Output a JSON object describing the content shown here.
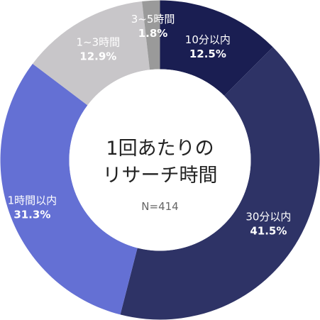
{
  "chart_data": {
    "type": "pie",
    "title": "1回あたりのリサーチ時間",
    "title_lines": [
      "1回あたりの",
      "リサーチ時間"
    ],
    "note": "N=414",
    "slices": [
      {
        "label": "10分以内",
        "value": 12.5,
        "value_text": "12.5%",
        "color": "#1a1e52"
      },
      {
        "label": "30分以内",
        "value": 41.5,
        "value_text": "41.5%",
        "color": "#2e3366"
      },
      {
        "label": "1時間以内",
        "value": 31.3,
        "value_text": "31.3%",
        "color": "#6470d4"
      },
      {
        "label": "1~3時間",
        "value": 12.9,
        "value_text": "12.9%",
        "color": "#c8c6c9"
      },
      {
        "label": "3~5時間",
        "value": 1.8,
        "value_text": "1.8%",
        "color": "#9a9a9a"
      }
    ]
  }
}
